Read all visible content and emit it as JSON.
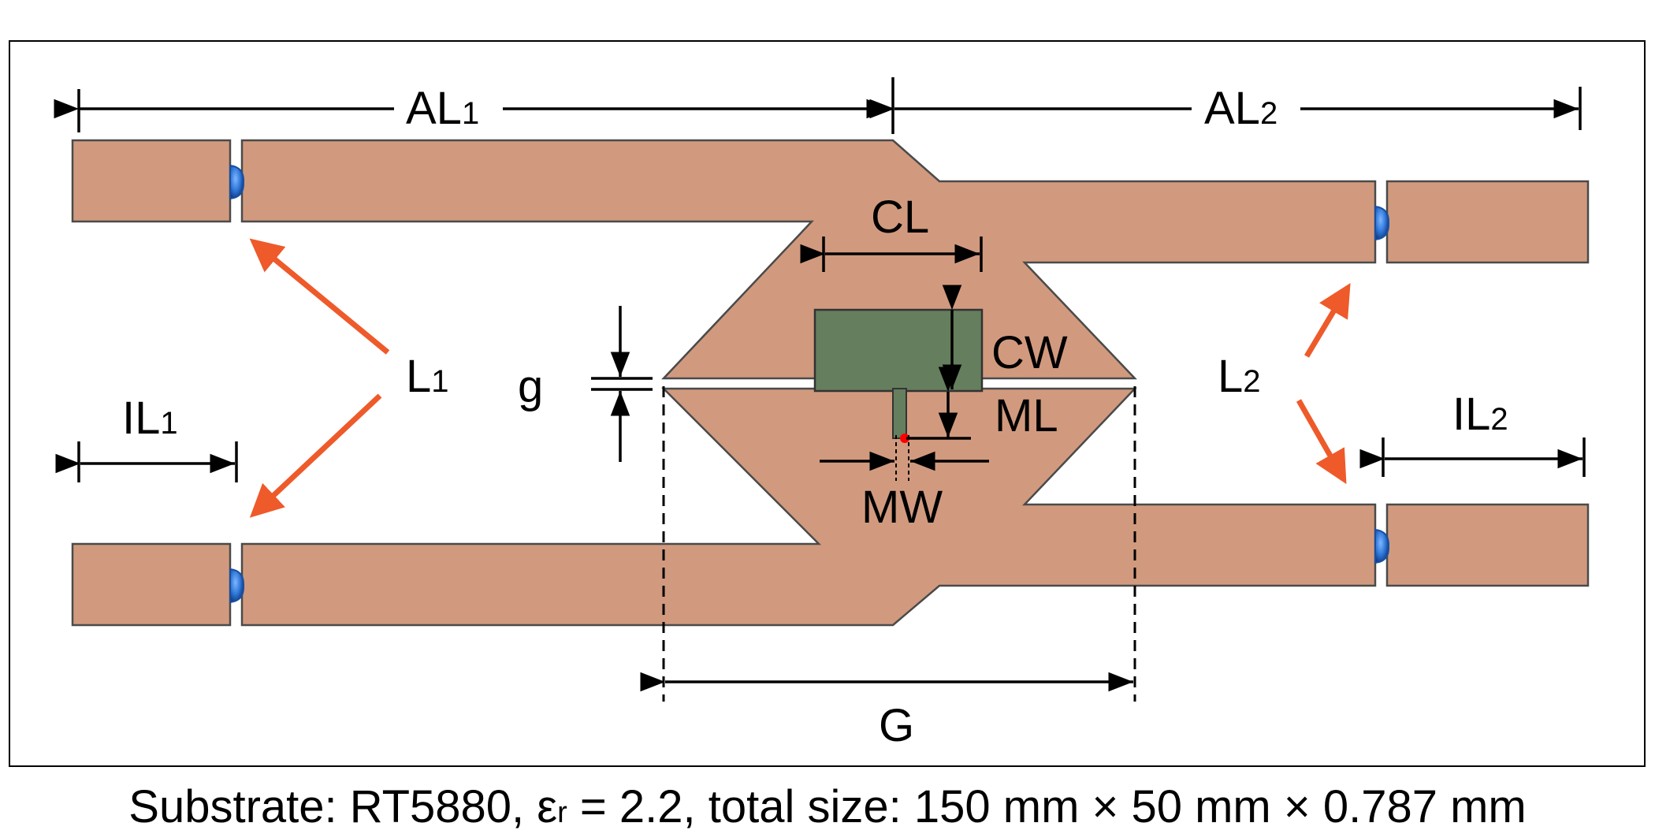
{
  "colors": {
    "copper": "#d19a7e",
    "patch": "#657e5d",
    "arrow": "#ee5a2a",
    "diode": "#2f78d8",
    "feed": "#ff0000"
  },
  "labels": {
    "AL1": {
      "main": "AL",
      "sub": "1"
    },
    "AL2": {
      "main": "AL",
      "sub": "2"
    },
    "CL": "CL",
    "CW": "CW",
    "ML": "ML",
    "MW": "MW",
    "g": "g",
    "G": "G",
    "L1": {
      "main": "L",
      "sub": "1"
    },
    "L2": {
      "main": "L",
      "sub": "2"
    },
    "IL1": {
      "main": "IL",
      "sub": "1"
    },
    "IL2": {
      "main": "IL",
      "sub": "2"
    }
  },
  "caption": {
    "prefix": "Substrate: RT5880, ε",
    "sub": "r",
    "suffix": " = 2.2, total size: 150 mm × 50 mm × 0.787 mm"
  },
  "icons": {
    "diode": "pin-diode-icon",
    "feed": "feed-point-icon"
  }
}
